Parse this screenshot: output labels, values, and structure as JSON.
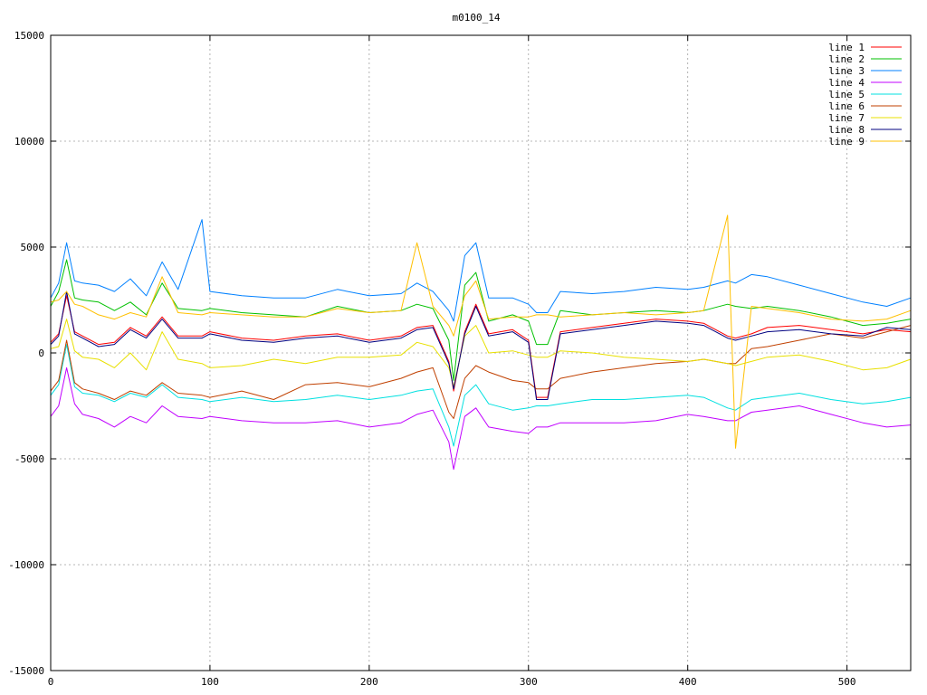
{
  "chart_data": {
    "type": "line",
    "title": "m0100_14",
    "xlabel": "",
    "ylabel": "",
    "xlim": [
      0,
      540
    ],
    "ylim": [
      -15000,
      15000
    ],
    "x_ticks": [
      0,
      100,
      200,
      300,
      400,
      500
    ],
    "y_ticks": [
      -15000,
      -10000,
      -5000,
      0,
      5000,
      10000,
      15000
    ],
    "grid": true,
    "legend_position": "top-right",
    "x": [
      0,
      5,
      10,
      15,
      20,
      30,
      40,
      50,
      60,
      70,
      80,
      95,
      100,
      120,
      140,
      160,
      180,
      200,
      220,
      230,
      240,
      250,
      253,
      260,
      267,
      275,
      290,
      300,
      305,
      312,
      320,
      340,
      360,
      380,
      400,
      410,
      425,
      430,
      440,
      450,
      470,
      490,
      510,
      525,
      540
    ],
    "series": [
      {
        "name": "line 1",
        "color": "#ff0000",
        "values": [
          500,
          900,
          2700,
          1000,
          800,
          400,
          500,
          1200,
          800,
          1700,
          800,
          800,
          1000,
          700,
          600,
          800,
          900,
          600,
          800,
          1200,
          1300,
          -400,
          -1800,
          1000,
          2300,
          900,
          1100,
          600,
          -2100,
          -2100,
          1000,
          1200,
          1400,
          1600,
          1500,
          1400,
          800,
          700,
          900,
          1200,
          1300,
          1100,
          900,
          1100,
          1000
        ]
      },
      {
        "name": "line 2",
        "color": "#00c000",
        "values": [
          2200,
          2900,
          4400,
          2600,
          2500,
          2400,
          2000,
          2400,
          1800,
          3300,
          2100,
          2000,
          2100,
          1900,
          1800,
          1700,
          2200,
          1900,
          2000,
          2300,
          2100,
          600,
          -1300,
          3200,
          3800,
          1500,
          1800,
          1500,
          400,
          400,
          2000,
          1800,
          1900,
          2000,
          1900,
          2000,
          2300,
          2200,
          2100,
          2200,
          2000,
          1700,
          1300,
          1400,
          1600
        ]
      },
      {
        "name": "line 3",
        "color": "#0080ff",
        "values": [
          2600,
          3300,
          5200,
          3400,
          3300,
          3200,
          2900,
          3500,
          2700,
          4300,
          3000,
          6300,
          2900,
          2700,
          2600,
          2600,
          3000,
          2700,
          2800,
          3300,
          2900,
          2000,
          1500,
          4600,
          5200,
          2600,
          2600,
          2300,
          1900,
          1900,
          2900,
          2800,
          2900,
          3100,
          3000,
          3100,
          3400,
          3300,
          3700,
          3600,
          3200,
          2800,
          2400,
          2200,
          2600
        ]
      },
      {
        "name": "line 4",
        "color": "#c000ff",
        "values": [
          -3000,
          -2500,
          -700,
          -2400,
          -2900,
          -3100,
          -3500,
          -3000,
          -3300,
          -2500,
          -3000,
          -3100,
          -3000,
          -3200,
          -3300,
          -3300,
          -3200,
          -3500,
          -3300,
          -2900,
          -2700,
          -4200,
          -5500,
          -3000,
          -2600,
          -3500,
          -3700,
          -3800,
          -3500,
          -3500,
          -3300,
          -3300,
          -3300,
          -3200,
          -2900,
          -3000,
          -3200,
          -3200,
          -2800,
          -2700,
          -2500,
          -2900,
          -3300,
          -3500,
          -3400
        ]
      },
      {
        "name": "line 5",
        "color": "#00e0e0",
        "values": [
          -2000,
          -1500,
          400,
          -1600,
          -1900,
          -2000,
          -2300,
          -1900,
          -2100,
          -1500,
          -2100,
          -2200,
          -2300,
          -2100,
          -2300,
          -2200,
          -2000,
          -2200,
          -2000,
          -1800,
          -1700,
          -3500,
          -4400,
          -2000,
          -1500,
          -2400,
          -2700,
          -2600,
          -2500,
          -2500,
          -2400,
          -2200,
          -2200,
          -2100,
          -2000,
          -2100,
          -2600,
          -2700,
          -2200,
          -2100,
          -1900,
          -2200,
          -2400,
          -2300,
          -2100
        ]
      },
      {
        "name": "line 6",
        "color": "#c04000",
        "values": [
          -1800,
          -1300,
          600,
          -1400,
          -1700,
          -1900,
          -2200,
          -1800,
          -2000,
          -1400,
          -1900,
          -2000,
          -2100,
          -1800,
          -2200,
          -1500,
          -1400,
          -1600,
          -1200,
          -900,
          -700,
          -2800,
          -3100,
          -1200,
          -600,
          -900,
          -1300,
          -1400,
          -1700,
          -1700,
          -1200,
          -900,
          -700,
          -500,
          -400,
          -300,
          -500,
          -500,
          200,
          300,
          600,
          900,
          700,
          1000,
          1300
        ]
      },
      {
        "name": "line 7",
        "color": "#e8e000",
        "values": [
          200,
          300,
          1600,
          100,
          -200,
          -300,
          -700,
          0,
          -800,
          1000,
          -300,
          -500,
          -700,
          -600,
          -300,
          -500,
          -200,
          -200,
          -100,
          500,
          300,
          -700,
          -1600,
          800,
          1300,
          0,
          100,
          -100,
          -200,
          -200,
          100,
          0,
          -200,
          -300,
          -400,
          -300,
          -500,
          -600,
          -400,
          -200,
          -100,
          -400,
          -800,
          -700,
          -300
        ]
      },
      {
        "name": "line 8",
        "color": "#000080",
        "values": [
          400,
          800,
          2900,
          900,
          700,
          300,
          400,
          1100,
          700,
          1600,
          700,
          700,
          900,
          600,
          500,
          700,
          800,
          500,
          700,
          1100,
          1200,
          -500,
          -1700,
          900,
          2200,
          800,
          1000,
          500,
          -2200,
          -2200,
          900,
          1100,
          1300,
          1500,
          1400,
          1300,
          700,
          600,
          800,
          1000,
          1100,
          900,
          800,
          1200,
          1100
        ]
      },
      {
        "name": "line 9",
        "color": "#ffc000",
        "values": [
          2400,
          2500,
          2900,
          2300,
          2200,
          1800,
          1600,
          1900,
          1700,
          3600,
          1900,
          1800,
          1900,
          1800,
          1700,
          1700,
          2100,
          1900,
          2000,
          5200,
          2200,
          1300,
          800,
          2700,
          3400,
          1600,
          1700,
          1700,
          1800,
          1800,
          1700,
          1800,
          1900,
          1800,
          1900,
          2000,
          6500,
          -4500,
          2200,
          2100,
          1900,
          1600,
          1500,
          1600,
          2000
        ]
      }
    ]
  }
}
